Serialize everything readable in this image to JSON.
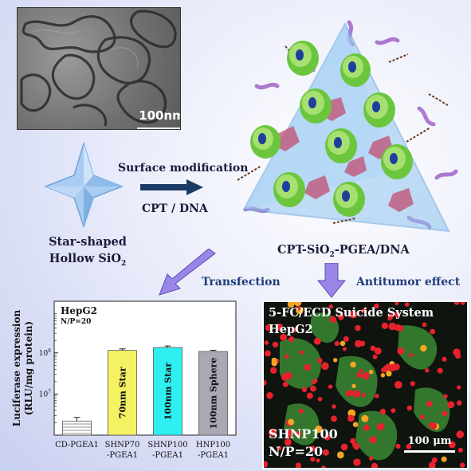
{
  "tem": {
    "scalebar_label": "100nm"
  },
  "star": {
    "line1": "Star-shaped",
    "line2": "Hollow SiO",
    "line2_sub": "2"
  },
  "arrow": {
    "top": "Surface modification",
    "bottom": "CPT / DNA"
  },
  "product": {
    "pre": "CPT-SiO",
    "sub": "2",
    "post": "-PGEA/DNA"
  },
  "arrows": {
    "transfection": "Transfection",
    "antitumor": "Antitumor effect"
  },
  "colors": {
    "bar_yellow": "#f4f163",
    "bar_cyan": "#2ff0f0",
    "bar_gray": "#a9a9b4",
    "arrow_purple": "#9a86e6",
    "dark_arrow": "#1c3a66"
  },
  "chart_data": {
    "type": "bar",
    "legend_title": "HepG2",
    "legend_sub": "N/P=20",
    "ylabel_line1": "Luciferase expression",
    "ylabel_line2": "(RLU/mg protein)",
    "yscale": "log",
    "ylim": [
      1000000,
      1800000000
    ],
    "yticks": [
      "10",
      "10"
    ],
    "ytick_exps": [
      "7",
      "8"
    ],
    "categories": [
      "CD-PGEA1",
      "SHNP70 -PGEA1",
      "SHNP100 -PGEA1",
      "HNP100 -PGEA1"
    ],
    "category_lines": [
      [
        "CD-PGEA1"
      ],
      [
        "SHNP70",
        "-PGEA1"
      ],
      [
        "SHNP100",
        "-PGEA1"
      ],
      [
        "HNP100",
        "-PGEA1"
      ]
    ],
    "values": [
      2200000,
      115000000,
      135000000,
      108000000
    ],
    "errors": [
      500000,
      10000000,
      12000000,
      8000000
    ],
    "bar_labels": [
      "",
      "70nm Star",
      "100nm Star",
      "100nm Sphere"
    ],
    "bar_fills": [
      "hatch",
      "#f4f163",
      "#2ff0f0",
      "#a9a9b4"
    ]
  },
  "micro": {
    "title1": "5-FC/ECD Suicide System",
    "title2": "HepG2",
    "bottom1": "SHNP100",
    "bottom2": "N/P=20",
    "scalebar": "100 μm"
  }
}
